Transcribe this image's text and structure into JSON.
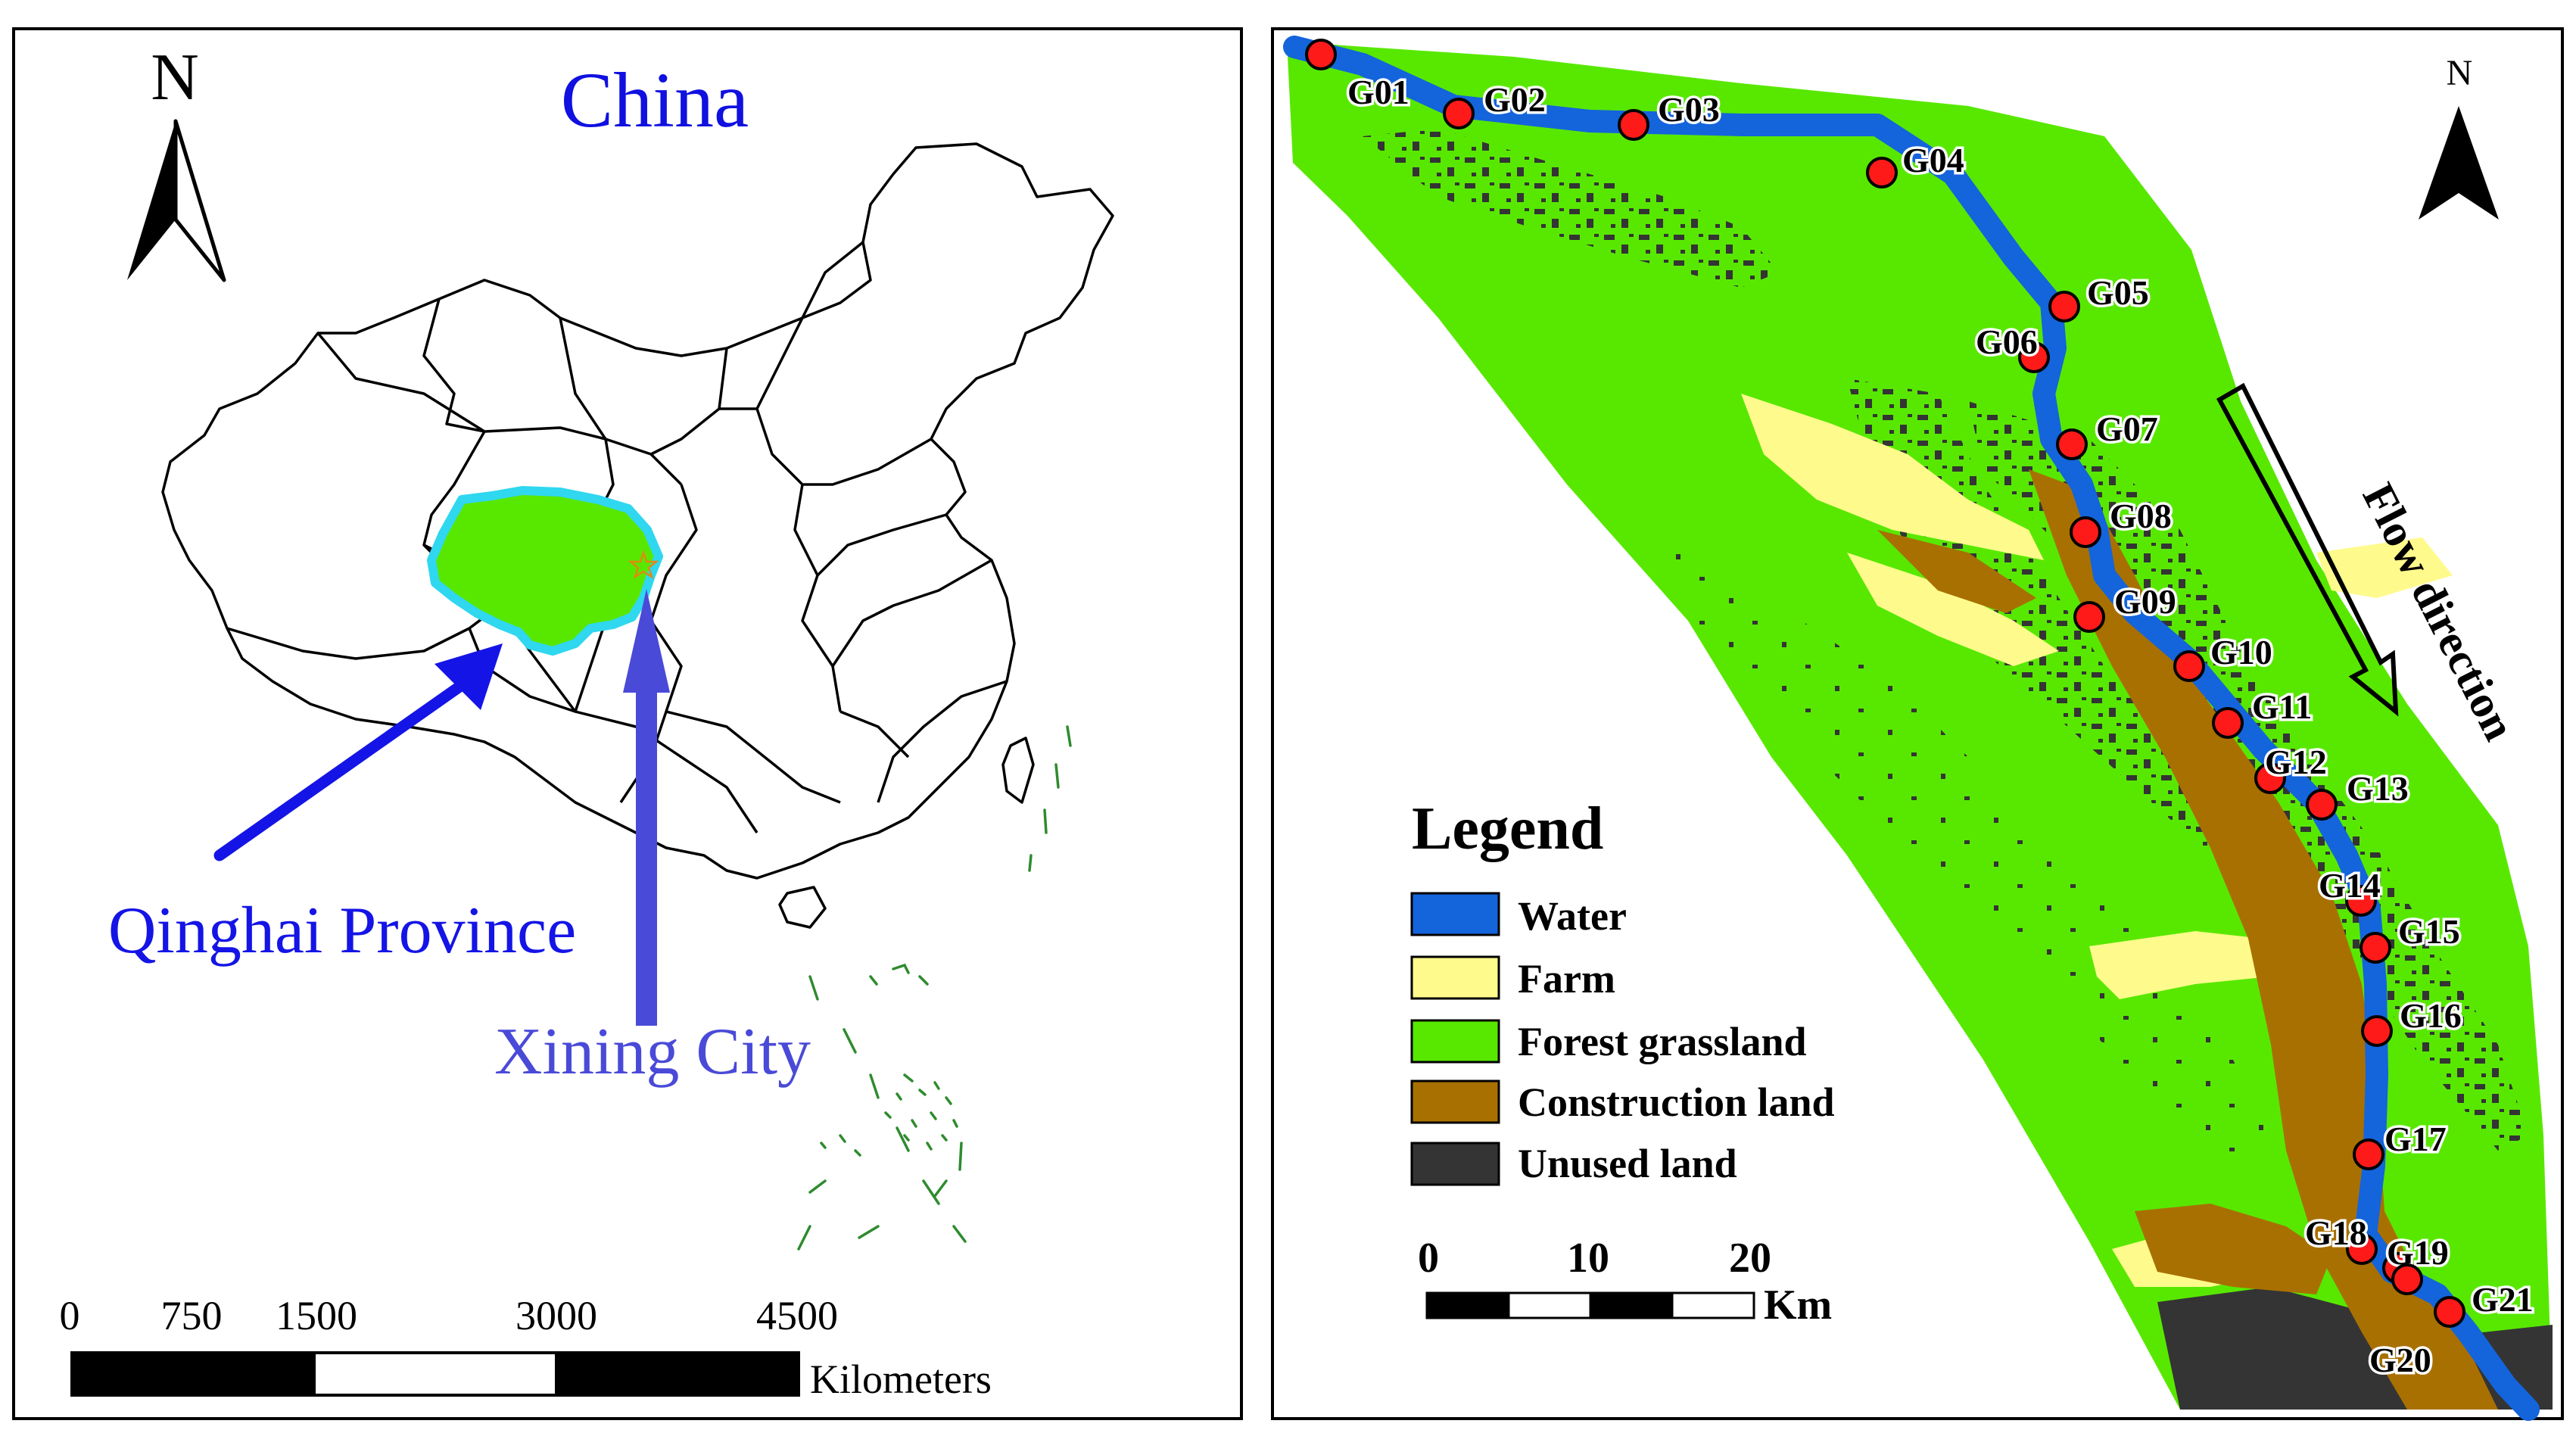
{
  "left_map": {
    "title": "China",
    "north_label": "N",
    "province_label": "Qinghai Province",
    "city_label": "Xining City",
    "scale": {
      "ticks": [
        "0",
        "750",
        "1500",
        "3000",
        "4500"
      ],
      "unit": "Kilometers"
    },
    "colors": {
      "province_fill": "#58e800",
      "province_outline": "#2fd7ef",
      "province_arrow": "#1414e6",
      "city_arrow": "#4a4ad8",
      "title": "#1010e0",
      "island_lines": "#2e8b2e"
    }
  },
  "right_map": {
    "north_label": "N",
    "flow_label": "Flow direction",
    "legend": {
      "title": "Legend",
      "items": [
        {
          "label": "Water",
          "color": "#1464dc"
        },
        {
          "label": "Farm",
          "color": "#fffa8c"
        },
        {
          "label": "Forest grassland",
          "color": "#58e800"
        },
        {
          "label": "Construction land",
          "color": "#a87000"
        },
        {
          "label": "Unused land",
          "color": "#343434"
        }
      ]
    },
    "scale": {
      "ticks": [
        "0",
        "10",
        "20"
      ],
      "unit": "Km"
    },
    "sampling_points": [
      "G01",
      "G02",
      "G03",
      "G04",
      "G05",
      "G06",
      "G07",
      "G08",
      "G09",
      "G10",
      "G11",
      "G12",
      "G13",
      "G14",
      "G15",
      "G16",
      "G17",
      "G18",
      "G19",
      "G20",
      "G21"
    ],
    "point_color": "#ff1a1a"
  }
}
